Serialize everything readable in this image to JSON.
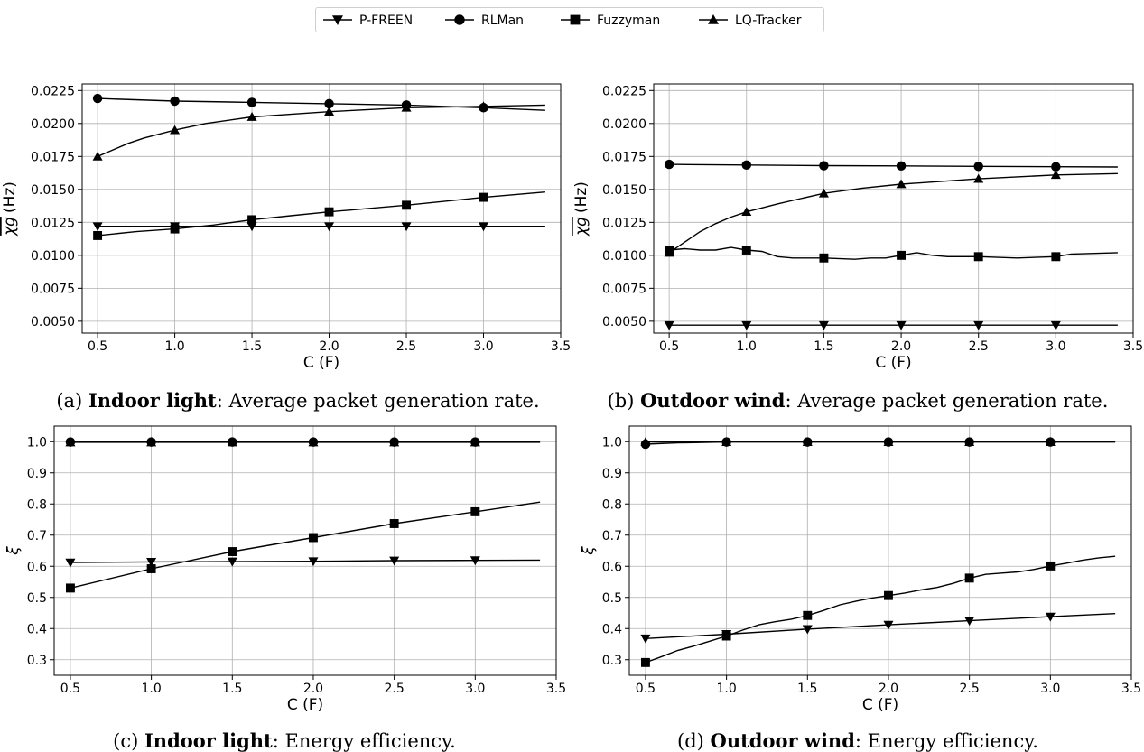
{
  "legend": {
    "entries": [
      {
        "name": "P-FREEN",
        "marker": "triangle-down"
      },
      {
        "name": "RLMan",
        "marker": "circle"
      },
      {
        "name": "Fuzzyman",
        "marker": "square"
      },
      {
        "name": "LQ-Tracker",
        "marker": "triangle-up"
      }
    ]
  },
  "chart_data": [
    {
      "type": "line",
      "caption_prefix": "(a) ",
      "caption_bold": "Indoor light",
      "caption_rest": ": Average packet generation rate.",
      "xlabel": "C (F)",
      "ylabel": "χg (Hz)",
      "xlim": [
        0.4,
        3.5
      ],
      "ylim": [
        0.0041,
        0.023
      ],
      "xticks": [
        0.5,
        1.0,
        1.5,
        2.0,
        2.5,
        3.0,
        3.5
      ],
      "xtick_labels": [
        "0.5",
        "1.0",
        "1.5",
        "2.0",
        "2.5",
        "3.0",
        "3.5"
      ],
      "yticks": [
        0.005,
        0.0075,
        0.01,
        0.0125,
        0.015,
        0.0175,
        0.02,
        0.0225
      ],
      "ytick_labels": [
        "0.0050",
        "0.0075",
        "0.0100",
        "0.0125",
        "0.0150",
        "0.0175",
        "0.0200",
        "0.0225"
      ],
      "grid": true,
      "series": [
        {
          "name": "P-FREEN",
          "marker": "triangle-down",
          "markers_x": [
            0.5,
            1.0,
            1.5,
            2.0,
            2.5,
            3.0
          ],
          "points": [
            [
              0.5,
              0.0122
            ],
            [
              1.0,
              0.0122
            ],
            [
              1.5,
              0.0122
            ],
            [
              2.0,
              0.0122
            ],
            [
              2.5,
              0.0122
            ],
            [
              3.0,
              0.0122
            ],
            [
              3.4,
              0.0122
            ]
          ]
        },
        {
          "name": "RLMan",
          "marker": "circle",
          "markers_x": [
            0.5,
            1.0,
            1.5,
            2.0,
            2.5,
            3.0
          ],
          "points": [
            [
              0.5,
              0.0219
            ],
            [
              1.0,
              0.0217
            ],
            [
              1.5,
              0.0216
            ],
            [
              2.0,
              0.0215
            ],
            [
              2.5,
              0.0214
            ],
            [
              3.0,
              0.0212
            ],
            [
              3.4,
              0.021
            ]
          ]
        },
        {
          "name": "Fuzzyman",
          "marker": "square",
          "markers_x": [
            0.5,
            1.0,
            1.5,
            2.0,
            2.5,
            3.0
          ],
          "points": [
            [
              0.5,
              0.0115
            ],
            [
              0.75,
              0.0118
            ],
            [
              1.0,
              0.012
            ],
            [
              1.25,
              0.0123
            ],
            [
              1.5,
              0.0127
            ],
            [
              1.75,
              0.013
            ],
            [
              2.0,
              0.0133
            ],
            [
              2.5,
              0.0138
            ],
            [
              3.0,
              0.0144
            ],
            [
              3.4,
              0.0148
            ]
          ]
        },
        {
          "name": "LQ-Tracker",
          "marker": "triangle-up",
          "markers_x": [
            0.5,
            1.0,
            1.5,
            2.0,
            2.5,
            3.0
          ],
          "points": [
            [
              0.5,
              0.0175
            ],
            [
              0.6,
              0.018
            ],
            [
              0.7,
              0.0185
            ],
            [
              0.8,
              0.0189
            ],
            [
              1.0,
              0.0195
            ],
            [
              1.2,
              0.02
            ],
            [
              1.5,
              0.0205
            ],
            [
              1.75,
              0.0207
            ],
            [
              2.0,
              0.0209
            ],
            [
              2.5,
              0.0212
            ],
            [
              3.0,
              0.0213
            ],
            [
              3.4,
              0.0214
            ]
          ]
        }
      ]
    },
    {
      "type": "line",
      "caption_prefix": "(b) ",
      "caption_bold": "Outdoor wind",
      "caption_rest": ": Average packet generation rate.",
      "xlabel": "C (F)",
      "ylabel": "χg (Hz)",
      "xlim": [
        0.4,
        3.5
      ],
      "ylim": [
        0.0041,
        0.023
      ],
      "xticks": [
        0.5,
        1.0,
        1.5,
        2.0,
        2.5,
        3.0,
        3.5
      ],
      "xtick_labels": [
        "0.5",
        "1.0",
        "1.5",
        "2.0",
        "2.5",
        "3.0",
        "3.5"
      ],
      "yticks": [
        0.005,
        0.0075,
        0.01,
        0.0125,
        0.015,
        0.0175,
        0.02,
        0.0225
      ],
      "ytick_labels": [
        "0.0050",
        "0.0075",
        "0.0100",
        "0.0125",
        "0.0150",
        "0.0175",
        "0.0200",
        "0.0225"
      ],
      "grid": true,
      "series": [
        {
          "name": "P-FREEN",
          "marker": "triangle-down",
          "markers_x": [
            0.5,
            1.0,
            1.5,
            2.0,
            2.5,
            3.0
          ],
          "points": [
            [
              0.5,
              0.0047
            ],
            [
              1.0,
              0.0047
            ],
            [
              1.5,
              0.0047
            ],
            [
              2.0,
              0.0047
            ],
            [
              2.5,
              0.0047
            ],
            [
              3.0,
              0.0047
            ],
            [
              3.4,
              0.0047
            ]
          ]
        },
        {
          "name": "RLMan",
          "marker": "circle",
          "markers_x": [
            0.5,
            1.0,
            1.5,
            2.0,
            2.5,
            3.0
          ],
          "points": [
            [
              0.5,
              0.0169
            ],
            [
              1.0,
              0.01685
            ],
            [
              1.5,
              0.0168
            ],
            [
              2.0,
              0.01678
            ],
            [
              2.5,
              0.01675
            ],
            [
              3.0,
              0.01672
            ],
            [
              3.4,
              0.0167
            ]
          ]
        },
        {
          "name": "Fuzzyman",
          "marker": "square",
          "markers_x": [
            0.5,
            1.0,
            1.5,
            2.0,
            2.5,
            3.0
          ],
          "points": [
            [
              0.5,
              0.0104
            ],
            [
              0.6,
              0.0105
            ],
            [
              0.7,
              0.0104
            ],
            [
              0.8,
              0.0104
            ],
            [
              0.9,
              0.0106
            ],
            [
              1.0,
              0.0104
            ],
            [
              1.1,
              0.0103
            ],
            [
              1.2,
              0.0099
            ],
            [
              1.3,
              0.0098
            ],
            [
              1.5,
              0.0098
            ],
            [
              1.7,
              0.0097
            ],
            [
              1.8,
              0.0098
            ],
            [
              1.9,
              0.0098
            ],
            [
              2.0,
              0.01
            ],
            [
              2.1,
              0.0102
            ],
            [
              2.2,
              0.01
            ],
            [
              2.3,
              0.0099
            ],
            [
              2.5,
              0.0099
            ],
            [
              2.75,
              0.0098
            ],
            [
              3.0,
              0.0099
            ],
            [
              3.1,
              0.0101
            ],
            [
              3.4,
              0.0102
            ]
          ]
        },
        {
          "name": "LQ-Tracker",
          "marker": "triangle-up",
          "markers_x": [
            0.5,
            1.0,
            1.5,
            2.0,
            2.5,
            3.0
          ],
          "points": [
            [
              0.5,
              0.0102
            ],
            [
              0.6,
              0.011
            ],
            [
              0.7,
              0.0118
            ],
            [
              0.8,
              0.0124
            ],
            [
              0.9,
              0.0129
            ],
            [
              1.0,
              0.0133
            ],
            [
              1.2,
              0.0139
            ],
            [
              1.35,
              0.0143
            ],
            [
              1.5,
              0.0147
            ],
            [
              1.75,
              0.0151
            ],
            [
              2.0,
              0.0154
            ],
            [
              2.5,
              0.0158
            ],
            [
              3.0,
              0.0161
            ],
            [
              3.4,
              0.0162
            ]
          ]
        }
      ]
    },
    {
      "type": "line",
      "caption_prefix": "(c) ",
      "caption_bold": "Indoor light",
      "caption_rest": ": Energy efficiency.",
      "xlabel": "C (F)",
      "ylabel": "ξ",
      "xlim": [
        0.4,
        3.5
      ],
      "ylim": [
        0.25,
        1.05
      ],
      "xticks": [
        0.5,
        1.0,
        1.5,
        2.0,
        2.5,
        3.0,
        3.5
      ],
      "xtick_labels": [
        "0.5",
        "1.0",
        "1.5",
        "2.0",
        "2.5",
        "3.0",
        "3.5"
      ],
      "yticks": [
        0.3,
        0.4,
        0.5,
        0.6,
        0.7,
        0.8,
        0.9,
        1.0
      ],
      "ytick_labels": [
        "0.3",
        "0.4",
        "0.5",
        "0.6",
        "0.7",
        "0.8",
        "0.9",
        "1.0"
      ],
      "grid": true,
      "series": [
        {
          "name": "P-FREEN",
          "marker": "triangle-down",
          "markers_x": [
            0.5,
            1.0,
            1.5,
            2.0,
            2.5,
            3.0
          ],
          "points": [
            [
              0.5,
              0.612
            ],
            [
              1.0,
              0.614
            ],
            [
              1.5,
              0.615
            ],
            [
              2.0,
              0.616
            ],
            [
              2.5,
              0.618
            ],
            [
              3.0,
              0.619
            ],
            [
              3.4,
              0.62
            ]
          ]
        },
        {
          "name": "RLMan",
          "marker": "circle",
          "markers_x": [
            0.5,
            1.0,
            1.5,
            2.0,
            2.5,
            3.0
          ],
          "points": [
            [
              0.5,
              0.999
            ],
            [
              1.0,
              0.999
            ],
            [
              1.5,
              0.999
            ],
            [
              2.0,
              0.999
            ],
            [
              2.5,
              0.999
            ],
            [
              3.0,
              0.999
            ],
            [
              3.4,
              0.999
            ]
          ]
        },
        {
          "name": "Fuzzyman",
          "marker": "square",
          "markers_x": [
            0.5,
            1.0,
            1.5,
            2.0,
            2.5,
            3.0
          ],
          "points": [
            [
              0.5,
              0.53
            ],
            [
              1.0,
              0.592
            ],
            [
              1.5,
              0.647
            ],
            [
              2.0,
              0.692
            ],
            [
              2.5,
              0.737
            ],
            [
              3.0,
              0.775
            ],
            [
              3.4,
              0.806
            ]
          ]
        },
        {
          "name": "LQ-Tracker",
          "marker": "triangle-up",
          "markers_x": [
            0.5,
            1.0,
            1.5,
            2.0,
            2.5,
            3.0
          ],
          "points": [
            [
              0.5,
              0.998
            ],
            [
              1.0,
              0.998
            ],
            [
              1.5,
              0.998
            ],
            [
              2.0,
              0.998
            ],
            [
              2.5,
              0.998
            ],
            [
              3.0,
              0.998
            ],
            [
              3.4,
              0.998
            ]
          ]
        }
      ]
    },
    {
      "type": "line",
      "caption_prefix": "(d) ",
      "caption_bold": "Outdoor wind",
      "caption_rest": ": Energy efficiency.",
      "xlabel": "C (F)",
      "ylabel": "ξ",
      "xlim": [
        0.4,
        3.5
      ],
      "ylim": [
        0.25,
        1.05
      ],
      "xticks": [
        0.5,
        1.0,
        1.5,
        2.0,
        2.5,
        3.0,
        3.5
      ],
      "xtick_labels": [
        "0.5",
        "1.0",
        "1.5",
        "2.0",
        "2.5",
        "3.0",
        "3.5"
      ],
      "yticks": [
        0.3,
        0.4,
        0.5,
        0.6,
        0.7,
        0.8,
        0.9,
        1.0
      ],
      "ytick_labels": [
        "0.3",
        "0.4",
        "0.5",
        "0.6",
        "0.7",
        "0.8",
        "0.9",
        "1.0"
      ],
      "grid": true,
      "series": [
        {
          "name": "P-FREEN",
          "marker": "triangle-down",
          "markers_x": [
            0.5,
            1.0,
            1.5,
            2.0,
            2.5,
            3.0
          ],
          "points": [
            [
              0.5,
              0.368
            ],
            [
              1.0,
              0.382
            ],
            [
              1.5,
              0.398
            ],
            [
              2.0,
              0.412
            ],
            [
              2.5,
              0.425
            ],
            [
              3.0,
              0.438
            ],
            [
              3.4,
              0.448
            ]
          ]
        },
        {
          "name": "RLMan",
          "marker": "circle",
          "markers_x": [
            0.5,
            1.0,
            1.5,
            2.0,
            2.5,
            3.0
          ],
          "points": [
            [
              0.5,
              0.992
            ],
            [
              0.7,
              0.996
            ],
            [
              0.8,
              0.997
            ],
            [
              1.0,
              0.999
            ],
            [
              1.5,
              0.999
            ],
            [
              2.0,
              0.999
            ],
            [
              2.5,
              0.999
            ],
            [
              3.0,
              0.999
            ],
            [
              3.4,
              0.999
            ]
          ]
        },
        {
          "name": "Fuzzyman",
          "marker": "square",
          "markers_x": [
            0.5,
            1.0,
            1.5,
            2.0,
            2.5,
            3.0
          ],
          "points": [
            [
              0.5,
              0.291
            ],
            [
              0.6,
              0.31
            ],
            [
              0.7,
              0.33
            ],
            [
              0.8,
              0.344
            ],
            [
              0.9,
              0.36
            ],
            [
              1.0,
              0.376
            ],
            [
              1.1,
              0.395
            ],
            [
              1.2,
              0.412
            ],
            [
              1.3,
              0.422
            ],
            [
              1.4,
              0.43
            ],
            [
              1.5,
              0.442
            ],
            [
              1.6,
              0.458
            ],
            [
              1.7,
              0.476
            ],
            [
              1.8,
              0.488
            ],
            [
              1.9,
              0.498
            ],
            [
              2.0,
              0.506
            ],
            [
              2.1,
              0.514
            ],
            [
              2.2,
              0.524
            ],
            [
              2.3,
              0.532
            ],
            [
              2.4,
              0.545
            ],
            [
              2.5,
              0.562
            ],
            [
              2.6,
              0.574
            ],
            [
              2.7,
              0.578
            ],
            [
              2.8,
              0.582
            ],
            [
              2.9,
              0.59
            ],
            [
              3.0,
              0.601
            ],
            [
              3.1,
              0.61
            ],
            [
              3.2,
              0.62
            ],
            [
              3.3,
              0.627
            ],
            [
              3.4,
              0.632
            ]
          ]
        },
        {
          "name": "LQ-Tracker",
          "marker": "triangle-up",
          "markers_x": [
            0.5,
            1.0,
            1.5,
            2.0,
            2.5,
            3.0
          ],
          "points": [
            [
              0.5,
              0.999
            ],
            [
              1.0,
              0.999
            ],
            [
              1.5,
              0.999
            ],
            [
              2.0,
              0.999
            ],
            [
              2.5,
              0.999
            ],
            [
              3.0,
              0.999
            ],
            [
              3.4,
              0.999
            ]
          ]
        }
      ]
    }
  ]
}
